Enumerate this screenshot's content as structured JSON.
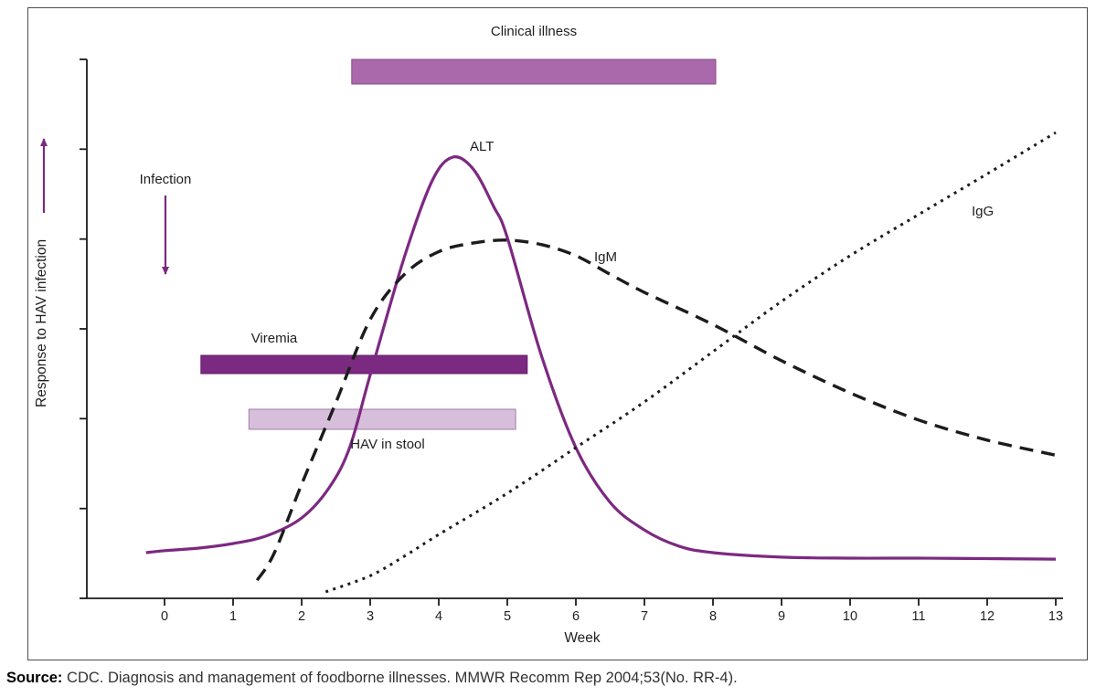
{
  "labels": {
    "clinical_illness": "Clinical illness",
    "alt": "ALT",
    "igm": "IgM",
    "igg": "IgG",
    "infection": "Infection",
    "viremia": "Viremia",
    "hav_in_stool": "HAV in stool"
  },
  "source": {
    "prefix": "Source:",
    "text": " CDC. Diagnosis and management of foodborne illnesses. MMWR Recomm Rep 2004;53(No. RR-4)."
  },
  "colors": {
    "accent": "#7c2981",
    "axis": "#1c1c1c",
    "clinical_bar": "#a969ab",
    "viremia_bar": "#7c2981",
    "stool_bar": "#d7bedb",
    "text": "#1f1f1f"
  },
  "chart_data": {
    "type": "line",
    "title": "",
    "xlabel": "Week",
    "ylabel": "Response to HAV infection",
    "x_ticks": [
      0,
      1,
      2,
      3,
      4,
      5,
      6,
      7,
      8,
      9,
      10,
      11,
      12,
      13
    ],
    "xlim": [
      -0.5,
      13.4
    ],
    "ylim": [
      0,
      100
    ],
    "y_units": "relative response (y axis unlabeled, tick marks only)",
    "grid": false,
    "legend": "inline curve labels",
    "series": [
      {
        "name": "ALT",
        "style": "solid",
        "color": "#7c2981",
        "points": [
          [
            -0.27,
            9.1
          ],
          [
            0,
            9.5
          ],
          [
            0.5,
            10
          ],
          [
            1,
            10.9
          ],
          [
            1.5,
            12.5
          ],
          [
            2,
            16
          ],
          [
            2.4,
            22
          ],
          [
            2.7,
            30
          ],
          [
            3,
            44.5
          ],
          [
            3.5,
            68
          ],
          [
            3.9,
            83
          ],
          [
            4.2,
            87.8
          ],
          [
            4.5,
            85.5
          ],
          [
            4.8,
            78
          ],
          [
            5,
            71.8
          ],
          [
            5.5,
            48.2
          ],
          [
            6,
            30
          ],
          [
            6.5,
            19.1
          ],
          [
            7,
            13.6
          ],
          [
            7.5,
            10.4
          ],
          [
            8,
            9.1
          ],
          [
            9,
            8.2
          ],
          [
            10,
            8
          ],
          [
            11,
            8
          ],
          [
            12,
            7.9
          ],
          [
            13,
            7.8
          ]
        ]
      },
      {
        "name": "IgM",
        "style": "dashed",
        "color": "#1c1c1c",
        "points": [
          [
            1.35,
            3.6
          ],
          [
            1.6,
            9
          ],
          [
            2,
            22.7
          ],
          [
            2.5,
            39
          ],
          [
            3,
            55.5
          ],
          [
            3.5,
            64.5
          ],
          [
            4,
            69
          ],
          [
            4.5,
            70.7
          ],
          [
            5,
            71.3
          ],
          [
            5.5,
            70.4
          ],
          [
            6,
            68.2
          ],
          [
            6.5,
            64.5
          ],
          [
            7,
            60.9
          ],
          [
            8,
            54.5
          ],
          [
            9,
            47.3
          ],
          [
            10,
            40.9
          ],
          [
            11,
            35.5
          ],
          [
            12,
            31.5
          ],
          [
            13,
            28.5
          ]
        ]
      },
      {
        "name": "IgG",
        "style": "dotted",
        "color": "#1c1c1c",
        "points": [
          [
            2.35,
            1.3
          ],
          [
            3,
            4.5
          ],
          [
            3.5,
            8.4
          ],
          [
            4,
            12.7
          ],
          [
            5,
            20.9
          ],
          [
            6,
            30
          ],
          [
            7,
            39.1
          ],
          [
            8,
            49.1
          ],
          [
            9,
            59.1
          ],
          [
            10,
            68.2
          ],
          [
            11,
            76.4
          ],
          [
            12,
            84.5
          ],
          [
            13,
            92.7
          ]
        ]
      }
    ],
    "bars": [
      {
        "name": "Clinical illness",
        "week_start": 2.73,
        "week_end": 8.04,
        "color": "#a969ab",
        "border": "#8a4a8d"
      },
      {
        "name": "Viremia",
        "week_start": 0.53,
        "week_end": 5.29,
        "color": "#7c2981",
        "border": "#641f68"
      },
      {
        "name": "HAV in stool",
        "week_start": 1.23,
        "week_end": 5.12,
        "color": "#d7bedb",
        "border": "#9b7fa3"
      }
    ],
    "annotations": [
      {
        "text": "Infection",
        "week": 0,
        "arrow": "down"
      },
      {
        "text": "Response to HAV infection",
        "axis": "y",
        "arrow": "up"
      }
    ]
  }
}
